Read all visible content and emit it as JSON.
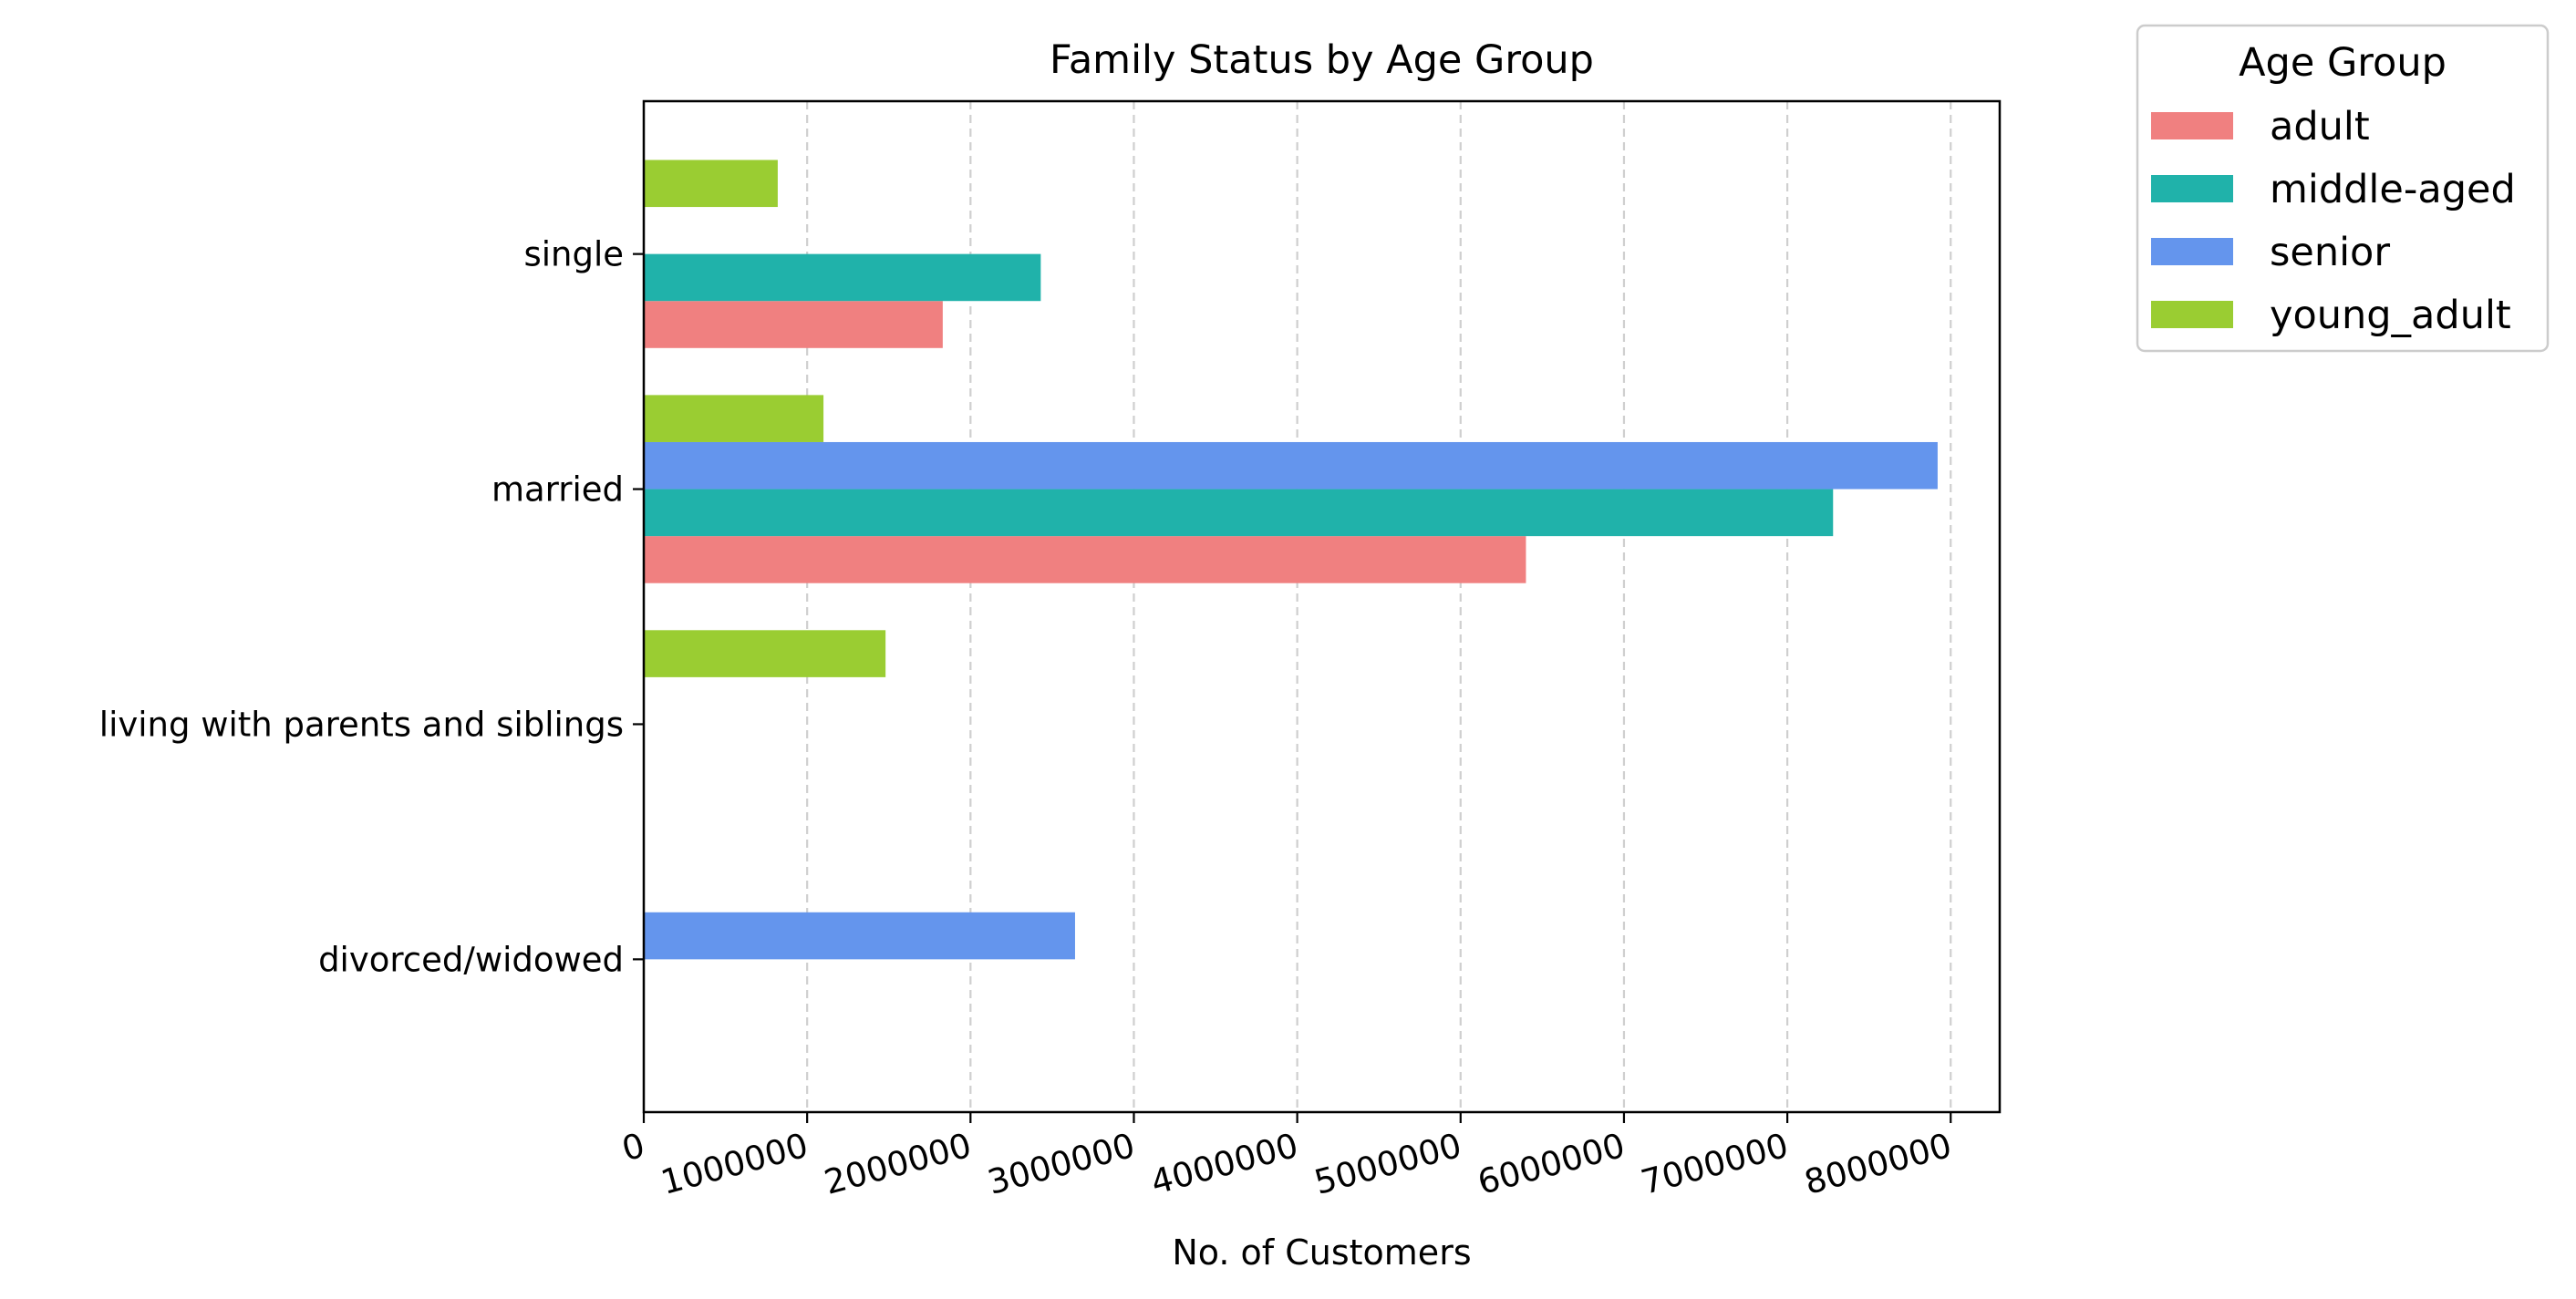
{
  "chart_data": {
    "type": "bar",
    "orientation": "horizontal",
    "title": "Family Status by Age Group",
    "xlabel": "No. of Customers",
    "ylabel": "",
    "xlim": [
      0,
      8300000
    ],
    "xticks": [
      0,
      1000000,
      2000000,
      3000000,
      4000000,
      5000000,
      6000000,
      7000000,
      8000000
    ],
    "xtick_labels": [
      "0",
      "1000000",
      "2000000",
      "3000000",
      "4000000",
      "5000000",
      "6000000",
      "7000000",
      "8000000"
    ],
    "categories": [
      "single",
      "married",
      "living with parents and siblings",
      "divorced/widowed"
    ],
    "grid": "x, dashed",
    "legend": {
      "title": "Age Group",
      "placement": "outside top-right"
    },
    "series": [
      {
        "name": "adult",
        "color": "#f08080",
        "values": [
          1830000,
          5400000,
          0,
          0
        ]
      },
      {
        "name": "middle-aged",
        "color": "#20b2aa",
        "values": [
          2430000,
          7280000,
          0,
          0
        ]
      },
      {
        "name": "senior",
        "color": "#6495ed",
        "values": [
          0,
          7920000,
          0,
          2640000
        ]
      },
      {
        "name": "young_adult",
        "color": "#9acd32",
        "values": [
          820000,
          1100000,
          1480000,
          0
        ]
      }
    ]
  }
}
